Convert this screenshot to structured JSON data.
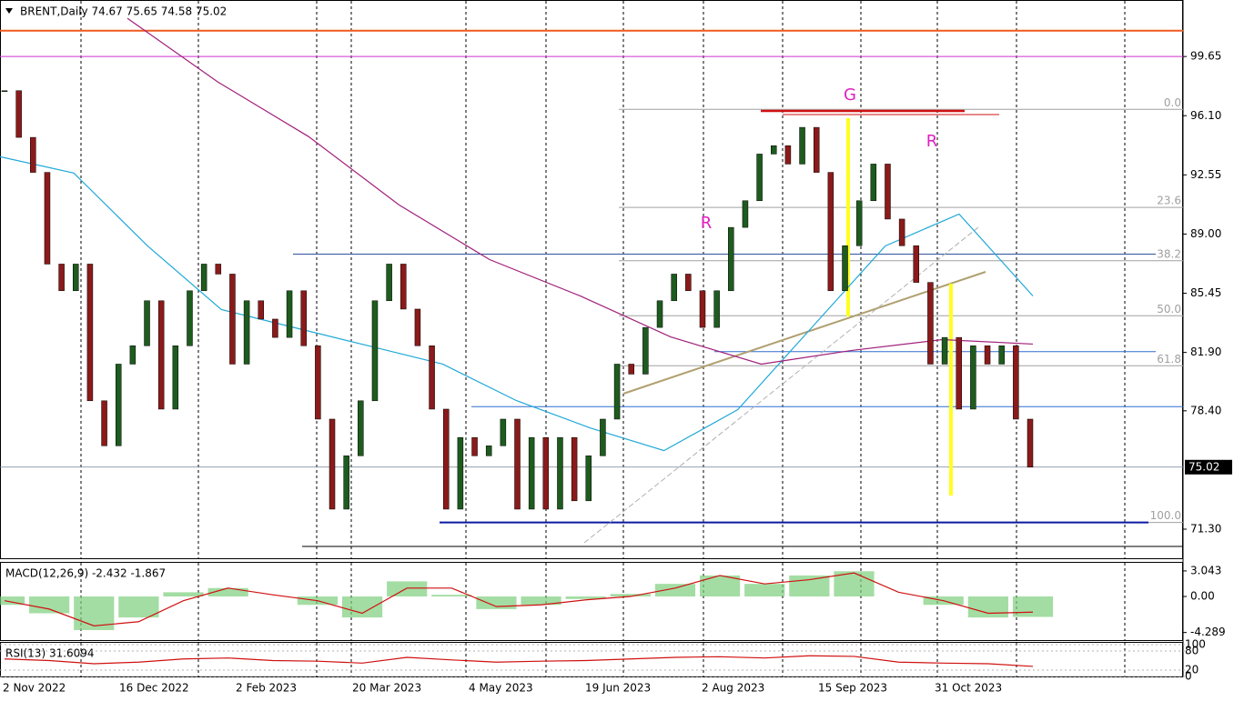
{
  "header": "BRENT,Daily  74.67 75.65 74.58 75.02",
  "price": {
    "ylim": [
      69.5,
      103.04
    ],
    "yticks": [
      99.65,
      {
        "value": 96.1,
        "label": "96.10"
      },
      92.55,
      {
        "value": 89,
        "label": "89.00"
      },
      85.45,
      {
        "value": 81.9,
        "label": "81.90"
      },
      {
        "value": 78.4,
        "label": "78.40"
      },
      {
        "value": 71.3,
        "label": "71.30"
      }
    ],
    "current": 75.02,
    "up_color": "#1e5b1e",
    "down_color": "#8b1a1a",
    "closes": [
      97.6,
      94.8,
      92.7,
      87.2,
      85.6,
      87.2,
      79.0,
      76.3,
      81.2,
      82.3,
      85.0,
      78.5,
      82.3,
      85.6,
      87.2,
      86.6,
      81.2,
      85.0,
      83.9,
      82.8,
      85.6,
      82.3,
      77.9,
      72.5,
      75.7,
      79.0,
      85.0,
      87.2,
      84.5,
      82.3,
      78.5,
      72.5,
      76.8,
      75.7,
      76.3,
      77.9,
      72.5,
      76.8,
      72.5,
      76.8,
      73.0,
      75.7,
      77.9,
      81.2,
      80.6,
      83.4,
      85.0,
      86.6,
      85.6,
      83.4,
      85.6,
      89.4,
      91.0,
      93.8,
      94.3,
      93.2,
      95.4,
      92.7,
      85.6,
      88.3,
      91.0,
      93.2,
      89.9,
      88.3,
      86.1,
      81.2,
      82.8,
      78.5,
      82.3,
      81.2,
      82.3,
      77.9,
      75.02
    ],
    "ma_fast": {
      "color": "#1fa8d8",
      "values": [
        93.64,
        92.66,
        88.29,
        84.47,
        83.38,
        82.29,
        81.2,
        79.01,
        77.37,
        76.01,
        78.47,
        83.38,
        88.29,
        90.2,
        85.29
      ]
    },
    "ma_slow": {
      "color": "#a0207a",
      "values": [
        101.94,
        98.12,
        94.85,
        90.75,
        87.47,
        85.29,
        82.83,
        81.2,
        82.02,
        82.67,
        82.4
      ]
    },
    "levels": [
      {
        "value": 101.2,
        "color": "#f05a1e"
      },
      {
        "value": 99.65,
        "color": "#d030d0"
      },
      {
        "value": 87.8,
        "color": "#3050a0"
      },
      {
        "value": 81.95,
        "color": "#2f6fd0"
      },
      {
        "value": 78.65,
        "color": "#2f6fd0"
      },
      {
        "value": 71.7,
        "color": "#0a1aa0"
      }
    ],
    "fib": [
      {
        "label": "0.0",
        "value": 96.48
      },
      {
        "label": "23.6",
        "value": 90.6
      },
      {
        "label": "38.2",
        "value": 87.4
      },
      {
        "label": "50.0",
        "value": 84.1
      },
      {
        "label": "61.8",
        "value": 81.1
      },
      {
        "label": "100.0",
        "value": 71.7
      }
    ],
    "annotations": [
      "G",
      "R",
      "R"
    ]
  },
  "macd": {
    "label": "MACD(12,26,9) -2.432 -1.867",
    "ylim": [
      -5.3,
      3.9
    ],
    "yticks": [
      3.043,
      {
        "value": 0,
        "label": "0.00"
      },
      -4.289
    ],
    "histogram": [
      -1.0,
      -2.0,
      -4.0,
      -2.5,
      0.5,
      1.0,
      0.0,
      -1.0,
      -2.5,
      1.8,
      0.2,
      -1.5,
      -1.0,
      -0.3,
      0.3,
      1.5,
      2.5,
      1.5,
      2.5,
      3.0,
      0.0,
      -1.0,
      -2.5,
      -2.432
    ],
    "signal": [
      -0.5,
      -1.5,
      -3.5,
      -3.0,
      -0.5,
      1.0,
      0.2,
      -0.5,
      -2.0,
      1.0,
      1.0,
      -1.2,
      -1.0,
      -0.4,
      0.0,
      1.0,
      2.5,
      1.5,
      2.0,
      2.8,
      0.5,
      -0.5,
      -2.0,
      -1.867
    ]
  },
  "rsi": {
    "label": "RSI(13) 31.6094",
    "ylim": [
      -2.9,
      105.7
    ],
    "yticks": [
      100,
      80,
      20,
      0
    ],
    "values": [
      55,
      50,
      40,
      45,
      55,
      58,
      50,
      48,
      42,
      60,
      52,
      45,
      48,
      50,
      55,
      60,
      62,
      58,
      65,
      63,
      45,
      42,
      40,
      31.6094
    ]
  },
  "dates": [
    "2 Nov 2022",
    "16 Dec 2022",
    "2 Feb 2023",
    "20 Mar 2023",
    "4 May 2023",
    "19 Jun 2023",
    "2 Aug 2023",
    "15 Sep 2023",
    "31 Oct 2023"
  ]
}
